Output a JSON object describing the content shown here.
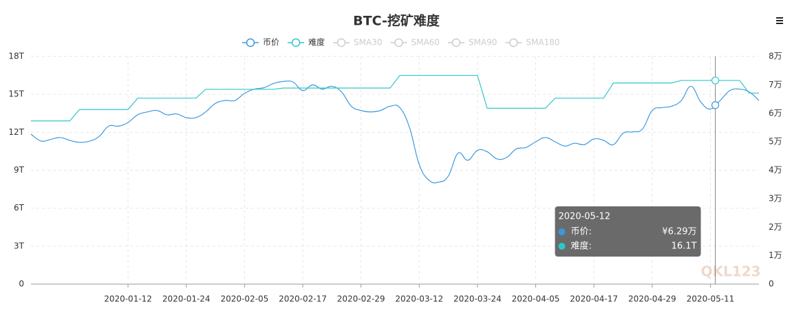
{
  "chart_data": {
    "type": "line",
    "title": "BTC-挖矿难度",
    "categories": [
      null,
      null,
      null,
      null,
      null,
      null,
      null,
      null,
      null,
      null,
      "2020-01-12",
      null,
      null,
      null,
      null,
      null,
      "2020-01-24",
      null,
      null,
      null,
      null,
      null,
      "2020-02-05",
      null,
      null,
      null,
      null,
      null,
      "2020-02-17",
      null,
      null,
      null,
      null,
      null,
      "2020-02-29",
      null,
      null,
      null,
      null,
      null,
      "2020-03-12",
      null,
      null,
      null,
      null,
      null,
      "2020-03-24",
      null,
      null,
      null,
      null,
      null,
      "2020-04-05",
      null,
      null,
      null,
      null,
      null,
      "2020-04-17",
      null,
      null,
      null,
      null,
      null,
      "2020-04-29",
      null,
      null,
      null,
      null,
      null,
      "2020-05-11",
      null,
      null,
      null,
      null,
      null
    ],
    "series": [
      {
        "name": "币价",
        "color": "#3a98e0",
        "axis": "y2",
        "values": [
          5.27,
          5.03,
          5.08,
          5.15,
          5.05,
          4.98,
          5.02,
          5.18,
          5.55,
          5.55,
          5.68,
          5.95,
          6.05,
          6.1,
          5.95,
          5.98,
          5.85,
          5.85,
          6.05,
          6.35,
          6.45,
          6.45,
          6.7,
          6.85,
          6.9,
          7.05,
          7.12,
          7.1,
          6.8,
          7.0,
          6.85,
          6.95,
          6.75,
          6.25,
          6.1,
          6.05,
          6.1,
          6.25,
          6.2,
          5.5,
          4.2,
          3.65,
          3.58,
          3.8,
          4.6,
          4.35,
          4.7,
          4.65,
          4.4,
          4.45,
          4.75,
          4.8,
          5.0,
          5.15,
          5.0,
          4.85,
          4.95,
          4.9,
          5.1,
          5.05,
          4.9,
          5.3,
          5.35,
          5.45,
          6.1,
          6.2,
          6.25,
          6.45,
          6.95,
          6.4,
          6.15,
          6.45,
          6.8,
          6.85,
          6.75,
          6.45
        ]
      },
      {
        "name": "难度",
        "color": "#2ec7c9",
        "values": [
          12.9,
          12.9,
          12.9,
          12.9,
          12.9,
          13.8,
          13.8,
          13.8,
          13.8,
          13.8,
          13.8,
          14.7,
          14.7,
          14.7,
          14.7,
          14.7,
          14.7,
          14.7,
          15.4,
          15.4,
          15.4,
          15.4,
          15.4,
          15.4,
          15.4,
          15.4,
          15.5,
          15.5,
          15.5,
          15.5,
          15.5,
          15.5,
          15.5,
          15.5,
          15.5,
          15.5,
          15.5,
          15.5,
          16.5,
          16.5,
          16.5,
          16.5,
          16.5,
          16.5,
          16.5,
          16.5,
          16.5,
          13.9,
          13.9,
          13.9,
          13.9,
          13.9,
          13.9,
          13.9,
          14.7,
          14.7,
          14.7,
          14.7,
          14.7,
          14.7,
          15.9,
          15.9,
          15.9,
          15.9,
          15.9,
          15.9,
          15.9,
          16.1,
          16.1,
          16.1,
          16.1,
          16.1,
          16.1,
          16.1,
          15.1,
          15.1
        ]
      }
    ],
    "legend_inactive": [
      "SMA30",
      "SMA60",
      "SMA90",
      "SMA180"
    ],
    "ylim": [
      0,
      18
    ],
    "yticks": [
      0,
      {
        "value": 3,
        "label": "3T"
      },
      {
        "value": 6,
        "label": "6T"
      },
      {
        "value": 9,
        "label": "9T"
      },
      {
        "value": 12,
        "label": "12T"
      },
      {
        "value": 15,
        "label": "15T"
      },
      {
        "value": 18,
        "label": "18T"
      }
    ],
    "y2lim": [
      0,
      8
    ],
    "y2ticks": [
      0,
      {
        "value": 1,
        "label": "1万"
      },
      {
        "value": 2,
        "label": "2万"
      },
      {
        "value": 3,
        "label": "3万"
      },
      {
        "value": 4,
        "label": "4万"
      },
      {
        "value": 5,
        "label": "5万"
      },
      {
        "value": 6,
        "label": "6万"
      },
      {
        "value": 7,
        "label": "7万"
      },
      {
        "value": 8,
        "label": "8万"
      }
    ],
    "grid": true,
    "tooltip": {
      "date": "2020-05-12",
      "items": [
        {
          "name": "币价:",
          "value": 6.29,
          "value_label": "¥6.29万"
        },
        {
          "name": "难度:",
          "value": 16.1,
          "value_label": "16.1T"
        }
      ]
    },
    "watermark": "QKL123"
  }
}
